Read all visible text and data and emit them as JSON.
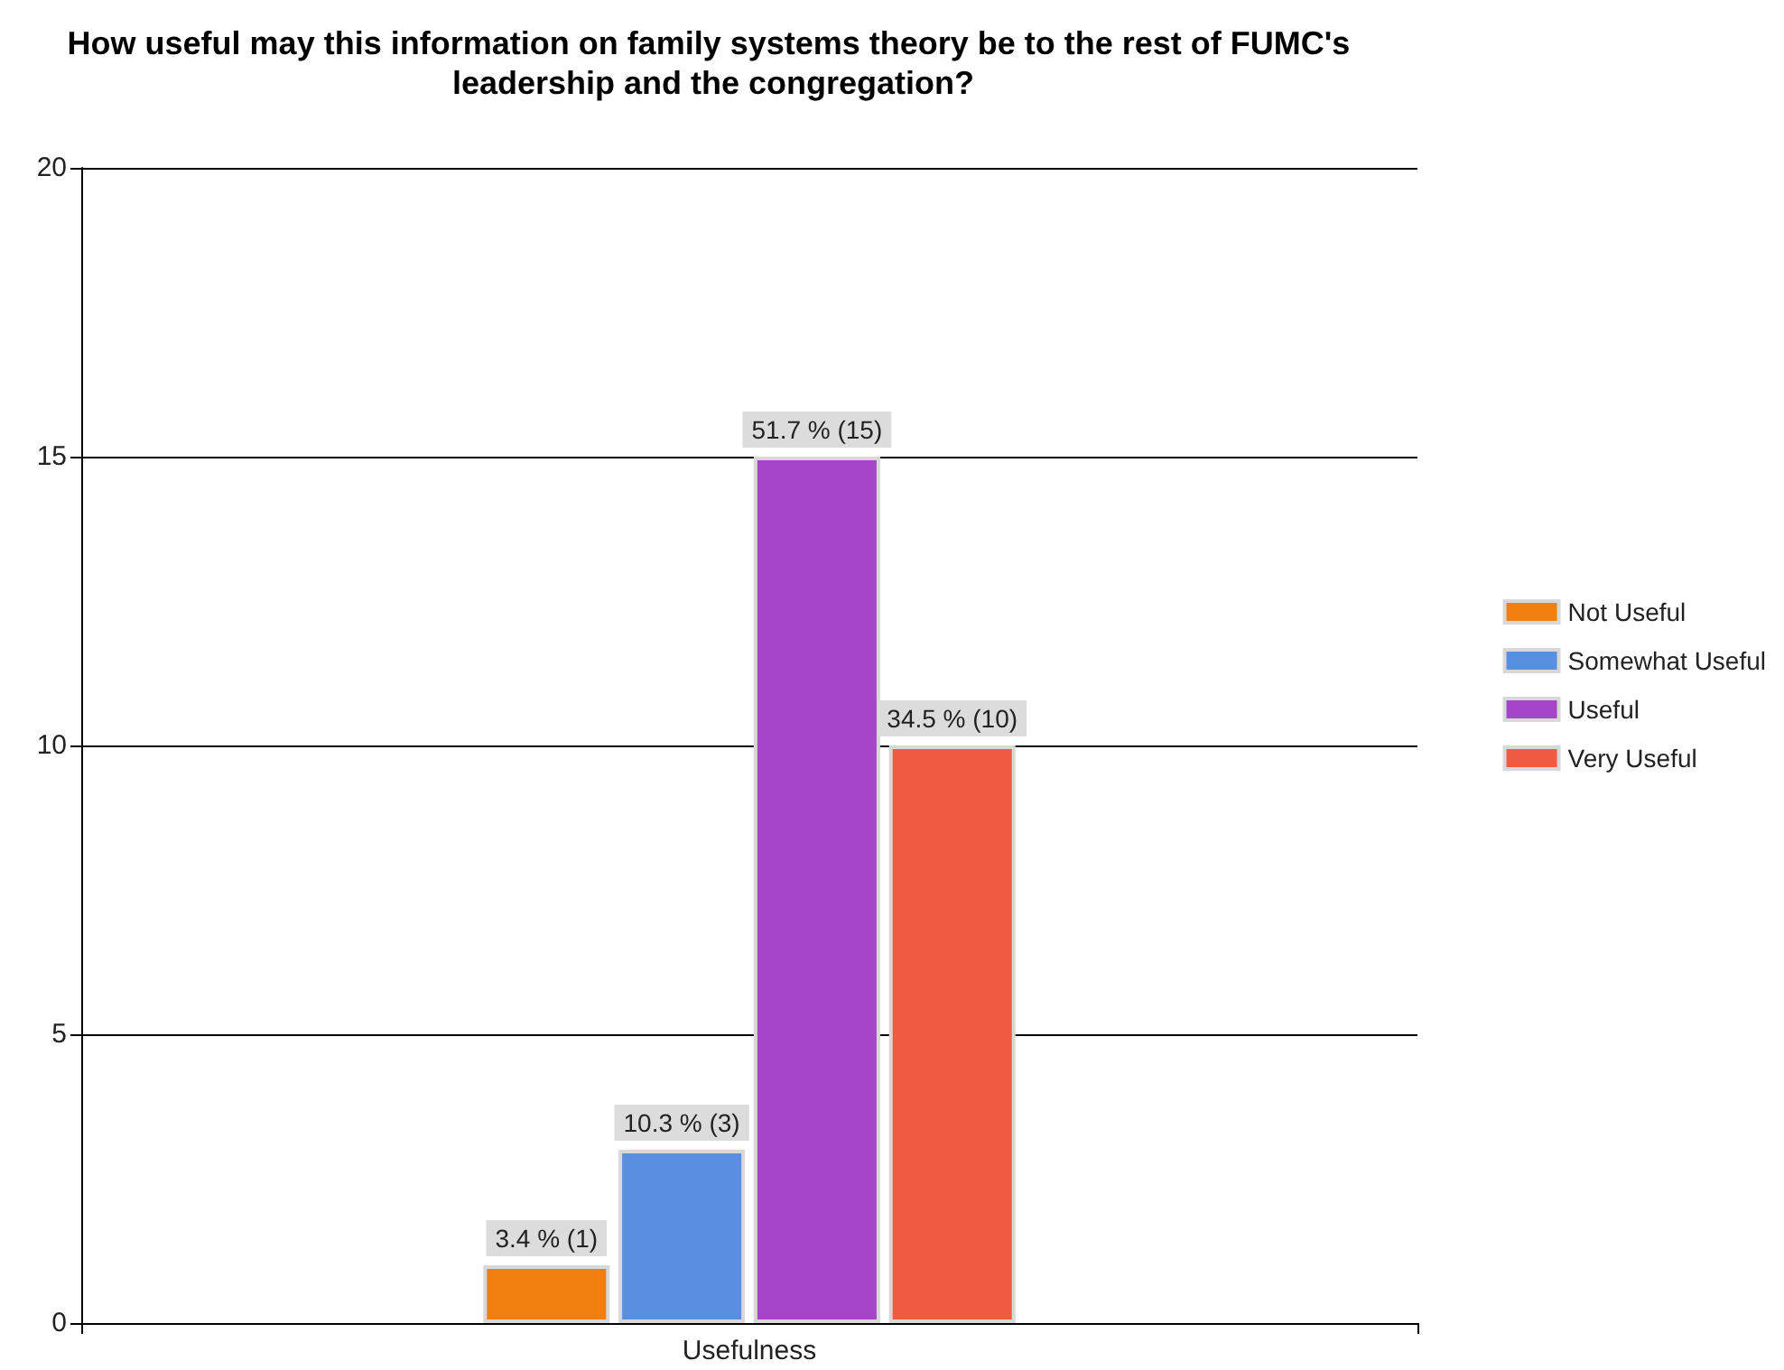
{
  "chart_data": {
    "type": "bar",
    "title": "How useful may this information on family systems theory be to the rest of FUMC's leadership and the congregation?",
    "categories": [
      "Usefulness"
    ],
    "series": [
      {
        "name": "Not Useful",
        "color": "#f07f10",
        "values": [
          1
        ],
        "value_labels": [
          "3.4 % (1)"
        ]
      },
      {
        "name": "Somewhat Useful",
        "color": "#5a8ee0",
        "values": [
          3
        ],
        "value_labels": [
          "10.3 % (3)"
        ]
      },
      {
        "name": "Useful",
        "color": "#a545c8",
        "values": [
          15
        ],
        "value_labels": [
          "51.7 % (15)"
        ]
      },
      {
        "name": "Very Useful",
        "color": "#f05a40",
        "values": [
          10
        ],
        "value_labels": [
          "34.5 % (10)"
        ]
      }
    ],
    "ylim": [
      0,
      20
    ],
    "yticks": [
      0,
      5,
      10,
      15,
      20
    ],
    "grid": "y",
    "legend": "right"
  }
}
